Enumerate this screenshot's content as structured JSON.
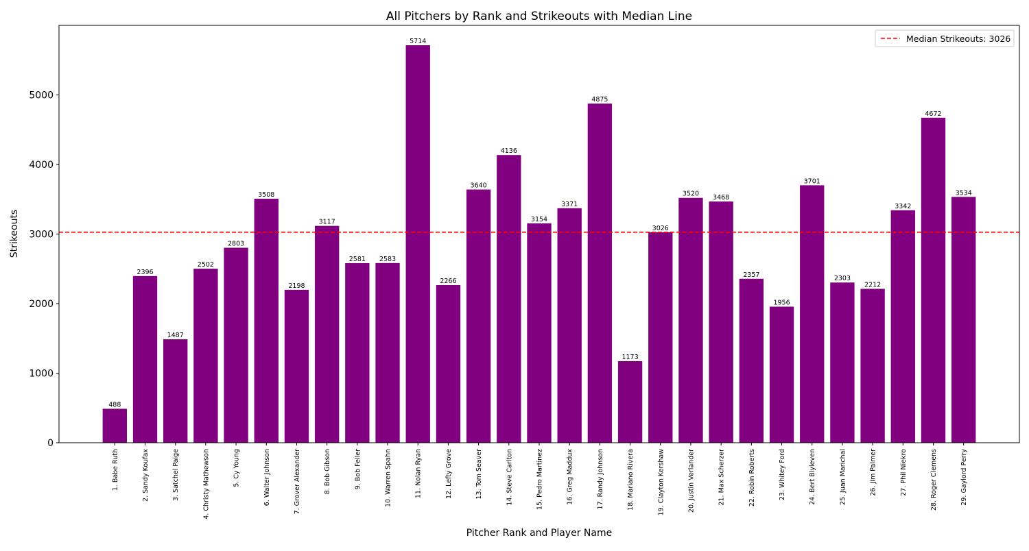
{
  "chart_data": {
    "type": "bar",
    "title": "All Pitchers by Rank and Strikeouts with Median Line",
    "xlabel": "Pitcher Rank and Player Name",
    "ylabel": "Strikeouts",
    "ylim": [
      0,
      6000
    ],
    "yticks": [
      0,
      1000,
      2000,
      3000,
      4000,
      5000
    ],
    "grid": false,
    "bar_color": "#800080",
    "median_color": "#ff0000",
    "legend_position": "top-right",
    "legend_label": "Median Strikeouts: 3026",
    "median": 3026,
    "categories": [
      "1. Babe Ruth",
      "2. Sandy Koufax",
      "3. Satchel Paige",
      "4. Christy Mathewson",
      "5. Cy Young",
      "6. Walter Johnson",
      "7. Grover Alexander",
      "8. Bob Gibson",
      "9. Bob Feller",
      "10. Warren Spahn",
      "11. Nolan Ryan",
      "12. Lefty Grove",
      "13. Tom Seaver",
      "14. Steve Carlton",
      "15. Pedro Martinez",
      "16. Greg Maddux",
      "17. Randy Johnson",
      "18. Mariano Rivera",
      "19. Clayton Kershaw",
      "20. Justin Verlander",
      "21. Max Scherzer",
      "22. Robin Roberts",
      "23. Whitey Ford",
      "24. Bert Blyleven",
      "25. Juan Marichal",
      "26. Jim Palmer",
      "27. Phil Niekro",
      "28. Roger Clemens",
      "29. Gaylord Perry"
    ],
    "values": [
      488,
      2396,
      1487,
      2502,
      2803,
      3508,
      2198,
      3117,
      2581,
      2583,
      5714,
      2266,
      3640,
      4136,
      3154,
      3371,
      4875,
      1173,
      3026,
      3520,
      3468,
      2357,
      1956,
      3701,
      2303,
      2212,
      3342,
      4672,
      3534
    ]
  }
}
